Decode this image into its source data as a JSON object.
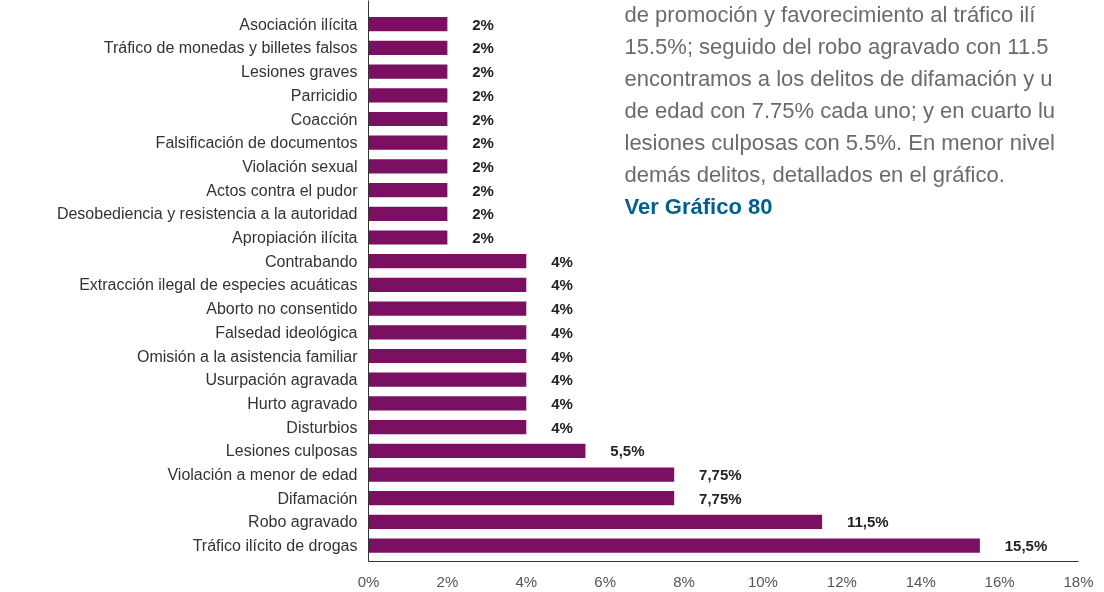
{
  "chart_data": {
    "type": "bar",
    "orientation": "horizontal",
    "categories": [
      "Asociación ilícita",
      "Tráfico de monedas y billetes falsos",
      "Lesiones graves",
      "Parricidio",
      "Coacción",
      "Falsificación de documentos",
      "Violación sexual",
      "Actos contra el pudor",
      "Desobediencia y resistencia a la autoridad",
      "Apropiación ilícita",
      "Contrabando",
      "Extracción ilegal de especies acuáticas",
      "Aborto no consentido",
      "Falsedad ideológica",
      "Omisión a la asistencia familiar",
      "Usurpación agravada",
      "Hurto agravado",
      "Disturbios",
      "Lesiones culposas",
      "Violación a menor de edad",
      "Difamación",
      "Robo agravado",
      "Tráfico ilícito de drogas"
    ],
    "values": [
      2,
      2,
      2,
      2,
      2,
      2,
      2,
      2,
      2,
      2,
      4,
      4,
      4,
      4,
      4,
      4,
      4,
      4,
      5.5,
      7.75,
      7.75,
      11.5,
      15.5
    ],
    "value_labels": [
      "2%",
      "2%",
      "2%",
      "2%",
      "2%",
      "2%",
      "2%",
      "2%",
      "2%",
      "2%",
      "4%",
      "4%",
      "4%",
      "4%",
      "4%",
      "4%",
      "4%",
      "4%",
      "5,5%",
      "7,75%",
      "7,75%",
      "11,5%",
      "15,5%"
    ],
    "color": "#7b0f62",
    "xlim": [
      0,
      18
    ],
    "xticks": [
      {
        "value": 0,
        "label": "0%"
      },
      {
        "value": 2,
        "label": "2%"
      },
      {
        "value": 4,
        "label": "4%"
      },
      {
        "value": 6,
        "label": "6%"
      },
      {
        "value": 8,
        "label": "8%"
      },
      {
        "value": 10,
        "label": "10%"
      },
      {
        "value": 12,
        "label": "12%"
      },
      {
        "value": 14,
        "label": "14%"
      },
      {
        "value": 16,
        "label": "16%"
      },
      {
        "value": 18,
        "label": "18%"
      }
    ],
    "grid": false,
    "annotations": [
      "de promoción y favorecimiento al tráfico ilí",
      "15.5%; seguido del robo agravado con 11.5",
      "encontramos a los delitos de difamación y u",
      "de edad con 7.75% cada uno; y en cuarto lu",
      "lesiones culposas con 5.5%. En menor nivel",
      "demás delitos, detallados en el gráfico.",
      "Ver Gráfico 80"
    ]
  }
}
